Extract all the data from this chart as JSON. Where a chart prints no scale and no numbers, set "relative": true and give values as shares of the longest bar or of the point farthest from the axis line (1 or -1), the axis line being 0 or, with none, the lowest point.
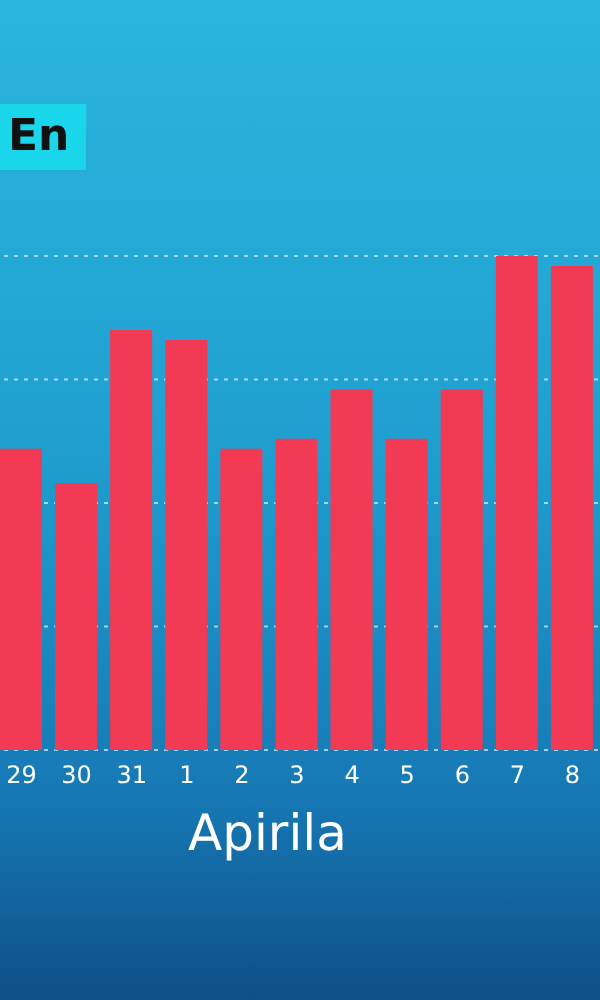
{
  "chart_data": {
    "type": "bar",
    "title": "En",
    "xlabel": "Apirila",
    "relative": true,
    "grid": "y",
    "categories": [
      "29",
      "30",
      "31",
      "1",
      "2",
      "3",
      "4",
      "5",
      "6",
      "7",
      "8"
    ],
    "values": [
      0.61,
      0.54,
      0.85,
      0.83,
      0.61,
      0.63,
      0.73,
      0.63,
      0.73,
      1,
      0.98
    ],
    "color": "#f23a55"
  }
}
